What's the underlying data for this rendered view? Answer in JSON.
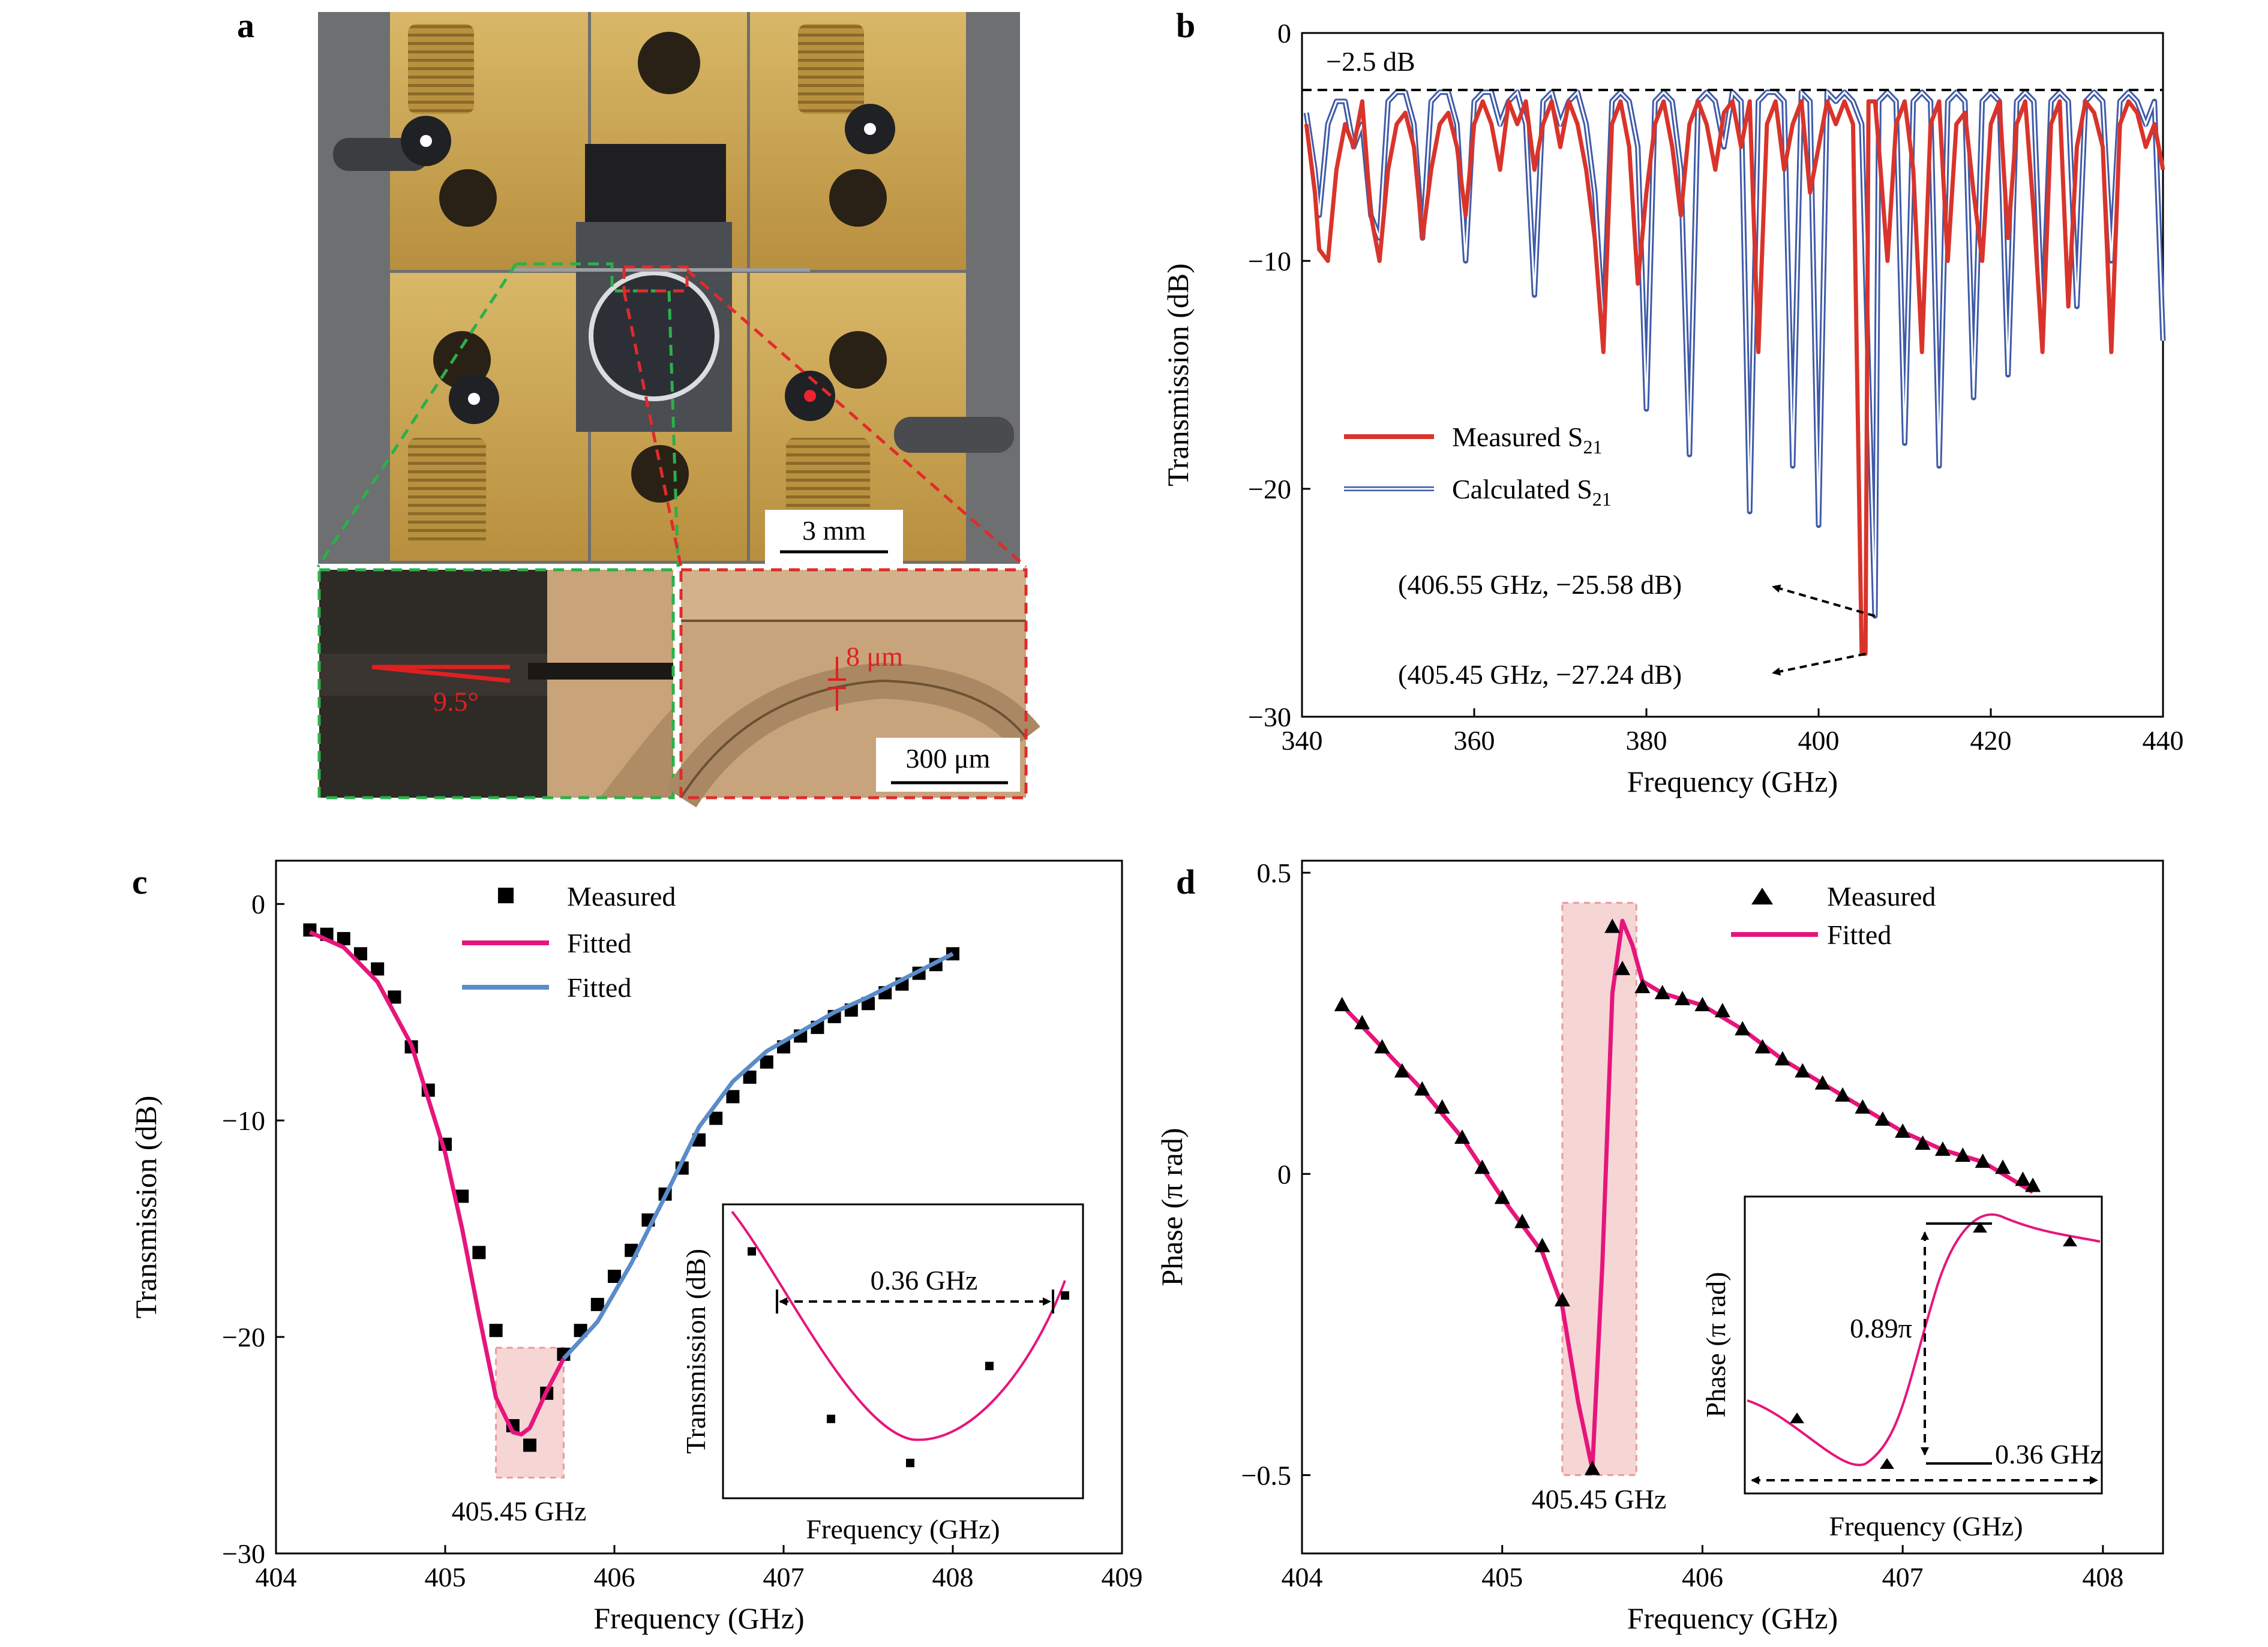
{
  "panels": {
    "a": {
      "letter": "a",
      "scalebar_main": "3 mm",
      "angle_label": "9.5°",
      "gap_label": "8 μm",
      "scalebar_inset": "300 μm"
    },
    "b": {
      "letter": "b",
      "ref_line_label": "−2.5 dB",
      "annotation_1": "(406.55 GHz, −25.58 dB)",
      "annotation_2": "(405.45 GHz, −27.24 dB)",
      "legend_measured": "Measured S",
      "legend_calculated": "Calculated S",
      "legend_sub": "21"
    },
    "c": {
      "letter": "c",
      "legend_measured": "Measured",
      "legend_fitted_1": "Fitted",
      "legend_fitted_2": "Fitted",
      "highlight_label": "405.45 GHz",
      "inset_bw_label": "0.36 GHz",
      "inset_xlabel": "Frequency (GHz)",
      "inset_ylabel": "Transmission (dB)"
    },
    "d": {
      "letter": "d",
      "legend_measured": "Measured",
      "legend_fitted": "Fitted",
      "highlight_label": "405.45 GHz",
      "inset_phase_label": "0.89π",
      "inset_bw_label": "0.36 GHz",
      "inset_xlabel": "Frequency (GHz)",
      "inset_ylabel": "Phase (π rad)"
    }
  },
  "colors": {
    "measured_red": "#d9342b",
    "calculated_blue": "#3f5aa8",
    "fitted_pink": "#e6157b",
    "fitted_blue": "#5a8cc8",
    "highlight": "#f6d5d5",
    "brass": "#c9a556"
  },
  "chart_data": [
    {
      "id": "b",
      "type": "line",
      "xlabel": "Frequency (GHz)",
      "ylabel": "Transmission (dB)",
      "xlim": [
        340,
        440
      ],
      "ylim": [
        -30,
        0
      ],
      "xticks": [
        340,
        360,
        380,
        400,
        420,
        440
      ],
      "yticks": [
        0,
        -10,
        -20,
        -30
      ],
      "ytick_labels": [
        "0",
        "−10",
        "−20",
        "−30"
      ],
      "ref_line_y": -2.5,
      "series": [
        {
          "name": "Measured S21",
          "color": "#d9342b",
          "x": [
            340.5,
            341.5,
            342,
            343,
            344,
            345,
            346,
            347,
            348,
            349,
            350,
            351,
            352,
            353,
            354,
            355,
            356,
            357,
            358,
            359,
            360,
            361,
            362,
            363,
            364,
            365,
            366,
            367,
            368,
            369,
            370,
            371,
            372,
            373,
            374,
            375,
            376,
            377,
            378,
            379,
            380,
            381,
            382,
            383,
            384,
            385,
            386,
            387,
            388,
            389,
            390,
            391,
            392,
            393,
            394,
            395,
            396,
            397,
            398,
            399,
            400,
            401,
            402,
            403,
            404,
            405,
            405.45,
            405.8,
            406.55,
            407,
            408,
            409,
            410,
            411,
            412,
            413,
            414,
            415,
            416,
            417,
            418,
            419,
            420,
            421,
            422,
            423,
            424,
            425,
            426,
            427,
            428,
            429,
            430,
            431,
            432,
            433,
            434,
            435,
            436,
            437,
            438,
            439,
            440
          ],
          "y": [
            -4,
            -7,
            -9.5,
            -10,
            -6,
            -4,
            -5,
            -3,
            -8,
            -10,
            -6,
            -4,
            -3.5,
            -5,
            -9,
            -6,
            -4,
            -3.5,
            -5,
            -8,
            -4,
            -3,
            -4,
            -6,
            -3,
            -4,
            -3,
            -6,
            -4,
            -3,
            -5,
            -3,
            -4,
            -6,
            -9,
            -14,
            -4,
            -3,
            -5,
            -11,
            -7,
            -4,
            -3,
            -5,
            -8,
            -4,
            -3,
            -4,
            -6,
            -3.5,
            -3,
            -5,
            -3,
            -14,
            -4,
            -3,
            -6,
            -4,
            -3,
            -7,
            -5,
            -3,
            -4,
            -3,
            -4,
            -27.24,
            -27.24,
            -3,
            -3,
            -5,
            -10,
            -4,
            -3,
            -6,
            -14,
            -4,
            -3,
            -10,
            -4,
            -3.5,
            -7,
            -10,
            -4,
            -3,
            -9,
            -4,
            -3,
            -8,
            -14,
            -4,
            -3,
            -12,
            -5,
            -3,
            -3.5,
            -5,
            -14,
            -4,
            -3,
            -3.5,
            -5,
            -4,
            -6
          ]
        },
        {
          "name": "Calculated S21",
          "color": "#3f5aa8",
          "x": [
            340.5,
            341.5,
            342,
            343,
            344,
            345,
            346,
            347,
            348,
            349,
            350,
            351,
            352,
            353,
            354,
            355,
            356,
            357,
            358,
            359,
            360,
            361,
            362,
            363,
            364,
            365,
            366,
            367,
            368,
            369,
            370,
            371,
            372,
            373,
            374,
            375,
            376,
            377,
            378,
            379,
            380,
            381,
            382,
            383,
            384,
            385,
            386,
            387,
            388,
            389,
            390,
            391,
            392,
            393,
            394,
            395,
            396,
            397,
            398,
            399,
            400,
            401,
            402,
            403,
            404,
            405,
            406.55,
            407,
            408,
            409,
            410,
            411,
            412,
            413,
            414,
            415,
            416,
            417,
            418,
            419,
            420,
            421,
            422,
            423,
            424,
            425,
            426,
            427,
            428,
            429,
            430,
            431,
            432,
            433,
            434,
            435,
            436,
            437,
            438,
            439,
            440
          ],
          "y": [
            -3.5,
            -6,
            -8,
            -4,
            -3,
            -3,
            -5,
            -4,
            -8,
            -9,
            -3,
            -2.6,
            -2.6,
            -4,
            -9,
            -3,
            -2.6,
            -2.6,
            -4,
            -10,
            -3,
            -2.6,
            -2.6,
            -4,
            -3,
            -2.6,
            -4,
            -11.5,
            -3,
            -2.6,
            -4,
            -3,
            -2.6,
            -4,
            -7,
            -13,
            -3,
            -2.6,
            -3,
            -5,
            -16.5,
            -3,
            -2.6,
            -3,
            -6,
            -18.5,
            -3,
            -2.6,
            -3,
            -5,
            -2.6,
            -3,
            -21,
            -3,
            -2.6,
            -2.6,
            -3,
            -19,
            -2.6,
            -3,
            -21.6,
            -2.6,
            -3,
            -2.6,
            -3,
            -4,
            -25.58,
            -3,
            -2.6,
            -3,
            -18,
            -3,
            -2.6,
            -3,
            -19,
            -3,
            -2.6,
            -3,
            -16,
            -3,
            -2.6,
            -3,
            -15,
            -3,
            -2.6,
            -3,
            -13,
            -3,
            -2.6,
            -3,
            -12,
            -3,
            -2.6,
            -3,
            -10,
            -3,
            -2.6,
            -3,
            -4,
            -3,
            -13.5
          ]
        }
      ],
      "annotations": [
        {
          "text": "(406.55 GHz, −25.58 dB)",
          "x": 406.55,
          "y": -25.58
        },
        {
          "text": "(405.45 GHz, −27.24 dB)",
          "x": 405.45,
          "y": -27.24
        }
      ]
    },
    {
      "id": "c",
      "type": "scatter",
      "xlabel": "Frequency (GHz)",
      "ylabel": "Transmission (dB)",
      "xlim": [
        404,
        409
      ],
      "ylim": [
        -30,
        2
      ],
      "xticks": [
        404,
        405,
        406,
        407,
        408,
        409
      ],
      "yticks": [
        0,
        -10,
        -20,
        -30
      ],
      "ytick_labels": [
        "0",
        "−10",
        "−20",
        "−30"
      ],
      "highlight_x": [
        405.3,
        405.7
      ],
      "highlight_y": [
        -26.5,
        -20.5
      ],
      "series": [
        {
          "name": "Measured",
          "x": [
            404.2,
            404.3,
            404.4,
            404.5,
            404.6,
            404.7,
            404.8,
            404.9,
            405.0,
            405.1,
            405.2,
            405.3,
            405.4,
            405.5,
            405.6,
            405.7,
            405.8,
            405.9,
            406.0,
            406.1,
            406.2,
            406.3,
            406.4,
            406.5,
            406.6,
            406.7,
            406.8,
            406.9,
            407.0,
            407.1,
            407.2,
            407.3,
            407.4,
            407.5,
            407.6,
            407.7,
            407.8,
            407.9,
            408.0
          ],
          "y": [
            -1.2,
            -1.4,
            -1.6,
            -2.3,
            -3.0,
            -4.3,
            -6.6,
            -8.6,
            -11.1,
            -13.5,
            -16.1,
            -19.7,
            -24.1,
            -25.0,
            -22.6,
            -20.8,
            -19.7,
            -18.5,
            -17.2,
            -16.0,
            -14.6,
            -13.4,
            -12.2,
            -10.9,
            -9.9,
            -8.9,
            -8.0,
            -7.3,
            -6.6,
            -6.1,
            -5.7,
            -5.2,
            -4.9,
            -4.6,
            -4.1,
            -3.7,
            -3.2,
            -2.8,
            -2.3
          ]
        },
        {
          "name": "Fitted",
          "color": "#e6157b",
          "x": [
            404.2,
            404.4,
            404.6,
            404.8,
            405.0,
            405.1,
            405.2,
            405.3,
            405.4,
            405.45,
            405.5,
            405.6,
            405.7
          ],
          "y": [
            -1.3,
            -2.0,
            -3.6,
            -6.5,
            -11.5,
            -15.0,
            -19.0,
            -22.8,
            -24.4,
            -24.5,
            -24.2,
            -22.5,
            -21.0
          ]
        },
        {
          "name": "Fitted",
          "color": "#5a8cc8",
          "x": [
            405.7,
            405.9,
            406.1,
            406.3,
            406.5,
            406.7,
            406.9,
            407.1,
            407.3,
            407.5,
            407.7,
            407.9,
            408.0
          ],
          "y": [
            -21.0,
            -19.3,
            -16.6,
            -13.5,
            -10.3,
            -8.2,
            -6.8,
            -5.9,
            -5.0,
            -4.3,
            -3.5,
            -2.7,
            -2.3
          ]
        }
      ],
      "inset": {
        "xlabel": "Frequency (GHz)",
        "ylabel": "Transmission (dB)",
        "bandwidth_label": "0.36 GHz",
        "points": [
          [
            0.08,
            0.16
          ],
          [
            0.3,
            0.73
          ],
          [
            0.52,
            0.88
          ],
          [
            0.74,
            0.55
          ],
          [
            0.95,
            0.31
          ]
        ]
      }
    },
    {
      "id": "d",
      "type": "scatter",
      "xlabel": "Frequency (GHz)",
      "ylabel": "Phase (π rad)",
      "xlim": [
        404,
        408.3
      ],
      "ylim": [
        -0.63,
        0.52
      ],
      "xticks": [
        404,
        405,
        406,
        407,
        408
      ],
      "yticks": [
        0.5,
        0,
        -0.5
      ],
      "ytick_labels": [
        "0.5",
        "0",
        "−0.5"
      ],
      "highlight_x": [
        405.3,
        405.67
      ],
      "highlight_y": [
        -0.5,
        0.45
      ],
      "series": [
        {
          "name": "Measured",
          "x": [
            404.2,
            404.3,
            404.4,
            404.5,
            404.6,
            404.7,
            404.8,
            404.9,
            405.0,
            405.1,
            405.2,
            405.3,
            405.45,
            405.55,
            405.6,
            405.7,
            405.8,
            405.9,
            406.0,
            406.1,
            406.2,
            406.3,
            406.4,
            406.5,
            406.6,
            406.7,
            406.8,
            406.9,
            407.0,
            407.1,
            407.2,
            407.3,
            407.4,
            407.5,
            407.6,
            407.65
          ],
          "y": [
            0.28,
            0.25,
            0.21,
            0.17,
            0.14,
            0.11,
            0.06,
            0.01,
            -0.04,
            -0.08,
            -0.12,
            -0.21,
            -0.49,
            0.41,
            0.34,
            0.31,
            0.3,
            0.29,
            0.28,
            0.27,
            0.24,
            0.21,
            0.19,
            0.17,
            0.15,
            0.13,
            0.11,
            0.09,
            0.07,
            0.05,
            0.04,
            0.03,
            0.02,
            0.01,
            -0.01,
            -0.02
          ]
        },
        {
          "name": "Fitted",
          "color": "#e6157b",
          "x": [
            404.2,
            404.4,
            404.6,
            404.8,
            405.0,
            405.2,
            405.3,
            405.38,
            405.45,
            405.5,
            405.55,
            405.6,
            405.65,
            405.7,
            405.8,
            406.0,
            406.2,
            406.4,
            406.6,
            406.8,
            407.0,
            407.2,
            407.4,
            407.65
          ],
          "y": [
            0.28,
            0.21,
            0.14,
            0.06,
            -0.04,
            -0.13,
            -0.22,
            -0.38,
            -0.49,
            -0.15,
            0.3,
            0.42,
            0.38,
            0.32,
            0.3,
            0.28,
            0.24,
            0.19,
            0.15,
            0.11,
            0.07,
            0.04,
            0.02,
            -0.03
          ]
        }
      ],
      "inset": {
        "xlabel": "Frequency (GHz)",
        "ylabel": "Phase (π rad)",
        "phase_label": "0.89π",
        "bandwidth_label": "0.36 GHz"
      }
    }
  ]
}
